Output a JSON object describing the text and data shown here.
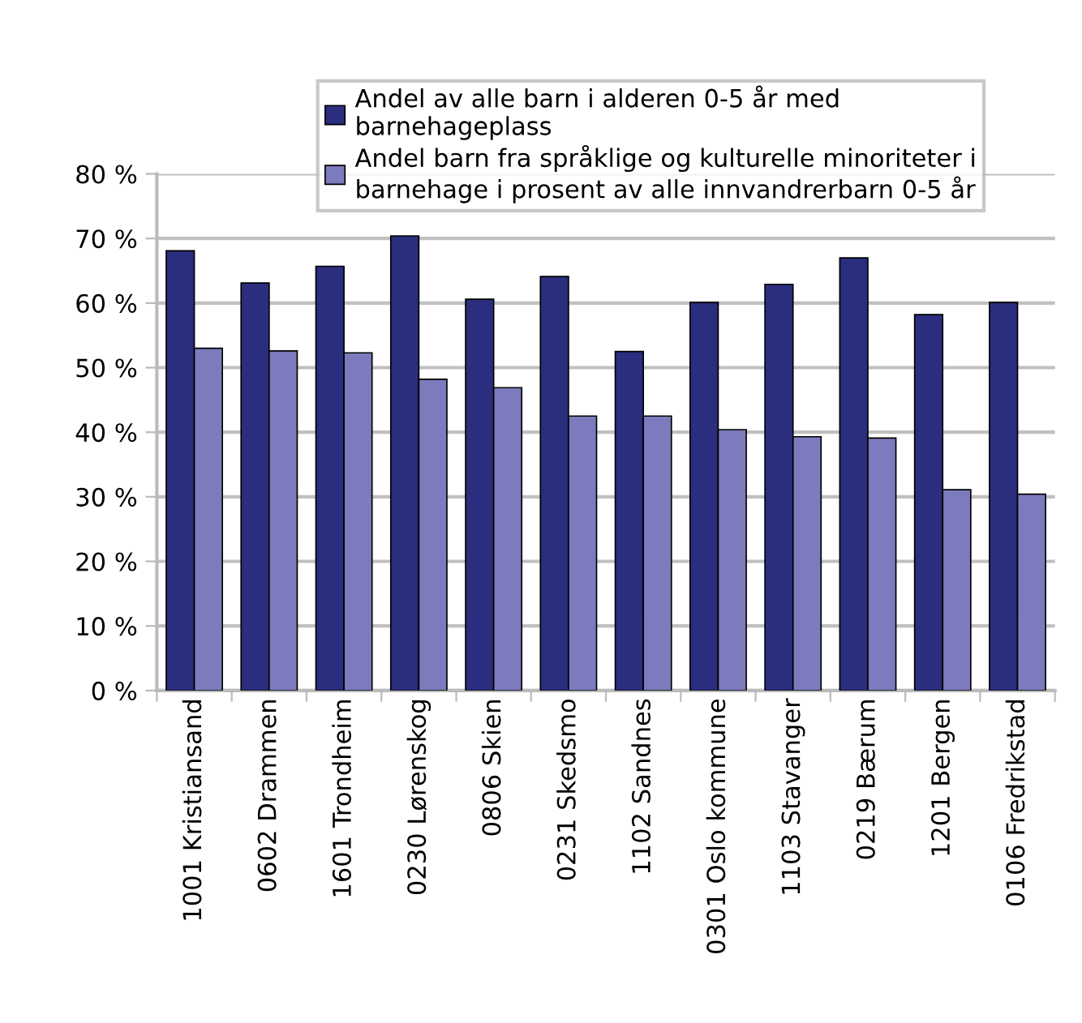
{
  "chart_data": {
    "type": "bar",
    "categories": [
      "1001 Kristiansand",
      "0602 Drammen",
      "1601 Trondheim",
      "0230 Lørenskog",
      "0806 Skien",
      "0231 Skedsmo",
      "1102 Sandnes",
      "0301 Oslo kommune",
      "1103 Stavanger",
      "0219 Bærum",
      "1201 Bergen",
      "0106 Fredrikstad"
    ],
    "series": [
      {
        "name": "Andel av alle barn i alderen 0-5 år med barnehageplass",
        "color": "#2b2d7e",
        "values": [
          68.1,
          63.1,
          65.7,
          70.4,
          60.6,
          64.1,
          52.5,
          60.1,
          62.9,
          67.0,
          58.2,
          60.1
        ]
      },
      {
        "name": "Andel barn fra språklige og kulturelle minoriteter i barnehage i prosent av alle innvandrerbarn 0-5 år",
        "color": "#7b7bbd",
        "values": [
          53.0,
          52.6,
          52.3,
          48.2,
          46.9,
          42.5,
          42.5,
          40.4,
          39.3,
          39.1,
          31.1,
          30.4
        ]
      }
    ],
    "ylim": [
      0,
      80
    ],
    "yticks": [
      {
        "value": 0,
        "label": "0 %"
      },
      {
        "value": 10,
        "label": "10 %"
      },
      {
        "value": 20,
        "label": "20 %"
      },
      {
        "value": 30,
        "label": "30 %"
      },
      {
        "value": 40,
        "label": "40 %"
      },
      {
        "value": 50,
        "label": "50 %"
      },
      {
        "value": 60,
        "label": "60 %"
      },
      {
        "value": 70,
        "label": "70 %"
      },
      {
        "value": 80,
        "label": "80 %"
      }
    ],
    "grid": "y",
    "legend": "top"
  }
}
